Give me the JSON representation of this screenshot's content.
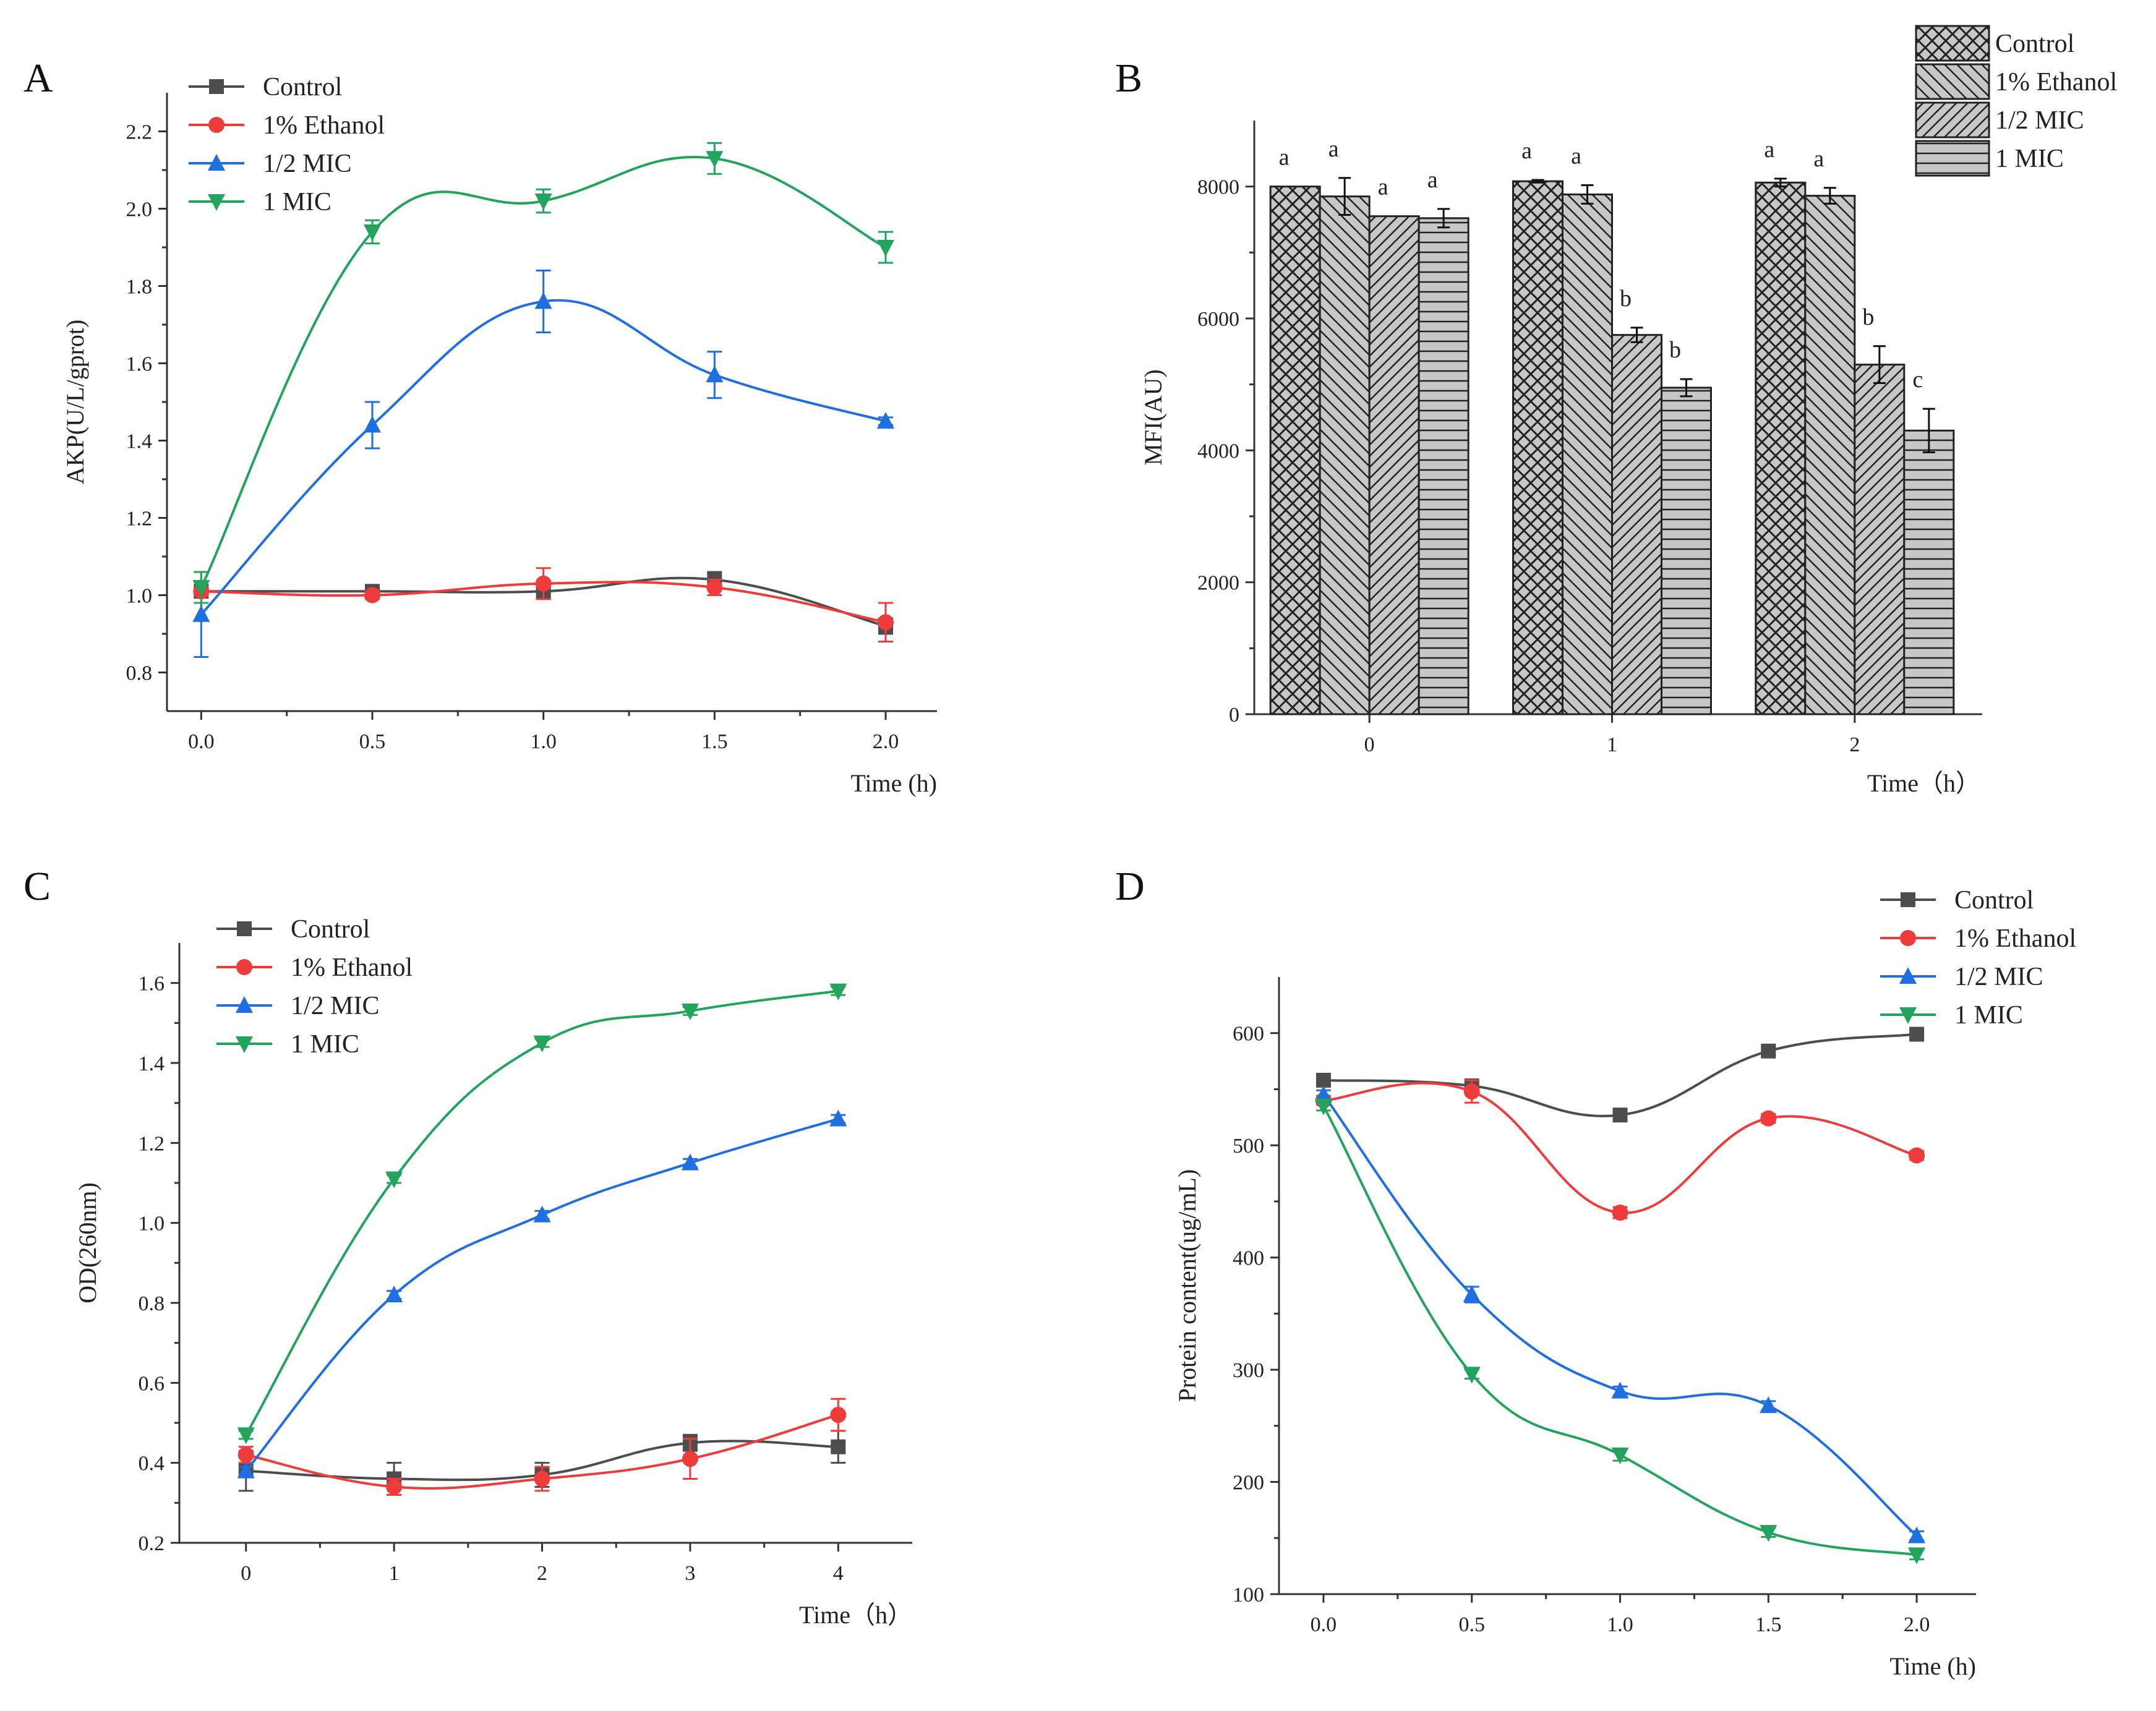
{
  "figure": {
    "panels": [
      "A",
      "B",
      "C",
      "D"
    ],
    "colors": {
      "Control": "#4d4d4d",
      "1% Ethanol": "#ee3b3b",
      "1/2 MIC": "#1f6fe0",
      "1 MIC": "#22a45d",
      "bar_fill": "#c7c7c7",
      "bar_stroke": "#222222"
    },
    "markers": {
      "Control": "square",
      "1% Ethanol": "circle",
      "1/2 MIC": "triangle-up",
      "1 MIC": "triangle-down"
    }
  },
  "chart_data": [
    {
      "panel": "A",
      "type": "line",
      "smooth": true,
      "xlabel": "Time (h)",
      "ylabel": "AKP(U/L/gprot)",
      "x": [
        0.0,
        0.5,
        1.0,
        1.5,
        2.0
      ],
      "xticks": [
        "0.0",
        "0.5",
        "1.0",
        "1.5",
        "2.0"
      ],
      "yticks": [
        "0.8",
        "1.0",
        "1.2",
        "1.4",
        "1.6",
        "1.8",
        "2.0",
        "2.2"
      ],
      "xlim": [
        -0.1,
        2.15
      ],
      "ylim": [
        0.7,
        2.3
      ],
      "legend": [
        "Control",
        "1% Ethanol",
        "1/2 MIC",
        "1 MIC"
      ],
      "series": [
        {
          "name": "Control",
          "values": [
            1.01,
            1.01,
            1.01,
            1.04,
            0.92
          ],
          "errors": [
            0.01,
            0.01,
            0.02,
            0.02,
            0.02
          ]
        },
        {
          "name": "1% Ethanol",
          "values": [
            1.01,
            1.0,
            1.03,
            1.02,
            0.93
          ],
          "errors": [
            0.01,
            0.01,
            0.04,
            0.02,
            0.05
          ]
        },
        {
          "name": "1/2 MIC",
          "values": [
            0.95,
            1.44,
            1.76,
            1.57,
            1.45
          ],
          "errors": [
            0.11,
            0.06,
            0.08,
            0.06,
            0.01
          ]
        },
        {
          "name": "1 MIC",
          "values": [
            1.02,
            1.94,
            2.02,
            2.13,
            1.9
          ],
          "errors": [
            0.04,
            0.03,
            0.03,
            0.04,
            0.04
          ]
        }
      ]
    },
    {
      "panel": "B",
      "type": "bar",
      "xlabel": "Time（h）",
      "ylabel": "MFI(AU)",
      "categories": [
        "0",
        "1",
        "2"
      ],
      "yticks": [
        "0",
        "2000",
        "4000",
        "6000",
        "8000"
      ],
      "ylim": [
        0,
        9000
      ],
      "legend": [
        "Control",
        "1% Ethanol",
        "1/2 MIC",
        "1 MIC"
      ],
      "series": [
        {
          "name": "Control",
          "values": [
            8000,
            8080,
            8060
          ],
          "errors": [
            0,
            20,
            60
          ],
          "letters": [
            "a",
            "a",
            "a"
          ],
          "pattern": "crosshatch"
        },
        {
          "name": "1% Ethanol",
          "values": [
            7850,
            7880,
            7860
          ],
          "errors": [
            280,
            140,
            120
          ],
          "letters": [
            "a",
            "a",
            "a"
          ],
          "pattern": "backslash"
        },
        {
          "name": "1/2 MIC",
          "values": [
            7550,
            5750,
            5300
          ],
          "errors": [
            0,
            110,
            280
          ],
          "letters": [
            "a",
            "b",
            "b"
          ],
          "pattern": "slash"
        },
        {
          "name": "1 MIC",
          "values": [
            7520,
            4950,
            4300
          ],
          "errors": [
            140,
            130,
            330
          ],
          "letters": [
            "a",
            "b",
            "c"
          ],
          "pattern": "horizontal"
        }
      ]
    },
    {
      "panel": "C",
      "type": "line",
      "smooth": true,
      "xlabel": "Time（h）",
      "ylabel": "OD(260nm)",
      "x": [
        0,
        1,
        2,
        3,
        4
      ],
      "xticks": [
        "0",
        "1",
        "2",
        "3",
        "4"
      ],
      "yticks": [
        "0.2",
        "0.4",
        "0.6",
        "0.8",
        "1.0",
        "1.2",
        "1.4",
        "1.6"
      ],
      "xlim": [
        -0.45,
        4.5
      ],
      "ylim": [
        0.2,
        1.7
      ],
      "legend": [
        "Control",
        "1% Ethanol",
        "1/2 MIC",
        "1 MIC"
      ],
      "series": [
        {
          "name": "Control",
          "values": [
            0.38,
            0.36,
            0.37,
            0.45,
            0.44
          ],
          "errors": [
            0.05,
            0.04,
            0.03,
            0.02,
            0.04
          ]
        },
        {
          "name": "1% Ethanol",
          "values": [
            0.42,
            0.34,
            0.36,
            0.41,
            0.52
          ],
          "errors": [
            0.02,
            0.02,
            0.03,
            0.05,
            0.04
          ]
        },
        {
          "name": "1/2 MIC",
          "values": [
            0.38,
            0.82,
            1.02,
            1.15,
            1.26
          ],
          "errors": [
            0.01,
            0.01,
            0.01,
            0.01,
            0.01
          ]
        },
        {
          "name": "1 MIC",
          "values": [
            0.47,
            1.11,
            1.45,
            1.53,
            1.58
          ],
          "errors": [
            0.01,
            0.01,
            0.01,
            0.01,
            0.01
          ]
        }
      ]
    },
    {
      "panel": "D",
      "type": "line",
      "smooth": true,
      "xlabel": "Time (h)",
      "ylabel": "Protein content(ug/mL)",
      "x": [
        0.0,
        0.5,
        1.0,
        1.5,
        2.0
      ],
      "xticks": [
        "0.0",
        "0.5",
        "1.0",
        "1.5",
        "2.0"
      ],
      "yticks": [
        "100",
        "200",
        "300",
        "400",
        "500",
        "600"
      ],
      "xlim": [
        -0.15,
        2.2
      ],
      "ylim": [
        100,
        650
      ],
      "legend": [
        "Control",
        "1% Ethanol",
        "1/2 MIC",
        "1 MIC"
      ],
      "series": [
        {
          "name": "Control",
          "values": [
            558,
            553,
            527,
            584,
            599
          ],
          "errors": [
            4,
            4,
            4,
            4,
            4
          ]
        },
        {
          "name": "1% Ethanol",
          "values": [
            540,
            548,
            440,
            524,
            491
          ],
          "errors": [
            4,
            10,
            5,
            4,
            4
          ]
        },
        {
          "name": "1/2 MIC",
          "values": [
            545,
            367,
            281,
            268,
            152
          ],
          "errors": [
            4,
            7,
            4,
            4,
            4
          ]
        },
        {
          "name": "1 MIC",
          "values": [
            535,
            296,
            224,
            155,
            135
          ],
          "errors": [
            4,
            4,
            5,
            4,
            4
          ]
        }
      ]
    }
  ]
}
